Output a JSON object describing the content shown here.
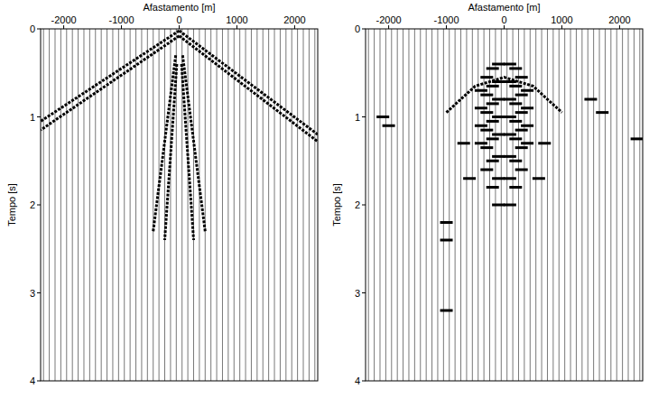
{
  "chart_data": [
    {
      "type": "seismic",
      "x_label": "Afastamento [m]",
      "y_label": "Tempo [s]",
      "xlim": [
        -2400,
        2400
      ],
      "ylim": [
        0,
        4
      ],
      "xticks": [
        -2000,
        -1000,
        0,
        1000,
        2000
      ],
      "yticks": [
        0,
        1,
        2,
        3,
        4
      ],
      "grid": false,
      "traces": [
        -2350,
        -2250,
        -2150,
        -2050,
        -1950,
        -1850,
        -1750,
        -1650,
        -1550,
        -1450,
        -1350,
        -1250,
        -1150,
        -1050,
        -950,
        -850,
        -750,
        -650,
        -550,
        -450,
        -350,
        -250,
        -150,
        -50,
        50,
        150,
        250,
        350,
        450,
        550,
        650,
        750,
        850,
        950,
        1050,
        1150,
        1250,
        1350,
        1450,
        1550,
        1650,
        1750,
        1850,
        1950,
        2050,
        2150,
        2250,
        2350
      ],
      "series": [
        {
          "type": "line",
          "line_style": "wiggle",
          "color": "#000000",
          "x": [
            0,
            -2400
          ],
          "values": [
            0.02,
            1.05
          ]
        },
        {
          "type": "line",
          "line_style": "wiggle",
          "color": "#000000",
          "x": [
            0,
            -2400
          ],
          "values": [
            0.08,
            1.15
          ]
        },
        {
          "type": "line",
          "line_style": "wiggle",
          "color": "#000000",
          "x": [
            0,
            2400
          ],
          "values": [
            0.02,
            1.2
          ]
        },
        {
          "type": "line",
          "line_style": "wiggle",
          "color": "#000000",
          "x": [
            0,
            2400
          ],
          "values": [
            0.08,
            1.28
          ]
        },
        {
          "type": "line",
          "line_style": "wiggle",
          "color": "#000000",
          "x": [
            -60,
            -450
          ],
          "values": [
            0.3,
            2.3
          ]
        },
        {
          "type": "line",
          "line_style": "wiggle",
          "color": "#000000",
          "x": [
            -40,
            -250
          ],
          "values": [
            0.4,
            2.4
          ]
        },
        {
          "type": "line",
          "line_style": "wiggle",
          "color": "#000000",
          "x": [
            60,
            450
          ],
          "values": [
            0.3,
            2.3
          ]
        },
        {
          "type": "line",
          "line_style": "wiggle",
          "color": "#000000",
          "x": [
            40,
            250
          ],
          "values": [
            0.4,
            2.4
          ]
        }
      ]
    },
    {
      "type": "seismic",
      "x_label": "Afastamento [m]",
      "y_label": "Tempo [s]",
      "xlim": [
        -2400,
        2400
      ],
      "ylim": [
        0,
        4
      ],
      "xticks": [
        -2000,
        -1000,
        0,
        1000,
        2000
      ],
      "yticks": [
        0,
        1,
        2,
        3,
        4
      ],
      "grid": false,
      "traces": [
        -2350,
        -2250,
        -2150,
        -2050,
        -1950,
        -1850,
        -1750,
        -1650,
        -1550,
        -1450,
        -1350,
        -1250,
        -1150,
        -1050,
        -950,
        -850,
        -750,
        -650,
        -550,
        -450,
        -350,
        -250,
        -150,
        -50,
        50,
        150,
        250,
        350,
        450,
        550,
        650,
        750,
        850,
        950,
        1050,
        1150,
        1250,
        1350,
        1450,
        1550,
        1650,
        1750,
        1850,
        1950,
        2050,
        2150,
        2250,
        2350
      ],
      "series": [
        {
          "type": "scatter",
          "marker": "dash",
          "color": "#000000",
          "x": [
            -400,
            -400,
            -400,
            -400,
            -300,
            -300,
            -300,
            -300,
            -300,
            -300,
            -200,
            -200,
            -200,
            -200,
            -200,
            -200,
            -200,
            -100,
            -100,
            -100,
            -100,
            -100,
            -100,
            -100,
            -100,
            100,
            100,
            100,
            100,
            100,
            100,
            100,
            100,
            200,
            200,
            200,
            200,
            200,
            200,
            200,
            300,
            300,
            300,
            300,
            300,
            300,
            400,
            400,
            400,
            400
          ],
          "values": [
            0.7,
            0.9,
            1.1,
            1.3,
            0.55,
            0.75,
            0.95,
            1.15,
            1.35,
            1.6,
            0.45,
            0.65,
            0.85,
            1.05,
            1.25,
            1.5,
            1.8,
            0.4,
            0.6,
            0.8,
            1.0,
            1.2,
            1.45,
            1.7,
            2.0,
            0.4,
            0.6,
            0.8,
            1.0,
            1.2,
            1.45,
            1.7,
            2.0,
            0.45,
            0.65,
            0.85,
            1.05,
            1.25,
            1.5,
            1.8,
            0.55,
            0.75,
            0.95,
            1.15,
            1.35,
            1.6,
            0.7,
            0.9,
            1.1,
            1.3
          ]
        },
        {
          "type": "scatter",
          "marker": "dash",
          "color": "#000000",
          "x": [
            -2100,
            -2000,
            -1000,
            -1000,
            -1000,
            1500,
            1700,
            2300,
            -700,
            700,
            -600,
            600
          ],
          "values": [
            1.0,
            1.1,
            2.2,
            2.4,
            3.2,
            0.8,
            0.95,
            1.25,
            1.3,
            1.3,
            1.7,
            1.7
          ]
        },
        {
          "type": "line",
          "line_style": "wiggle",
          "color": "#000000",
          "x": [
            -1000,
            -500,
            0,
            500,
            1000
          ],
          "values": [
            0.95,
            0.65,
            0.55,
            0.65,
            0.95
          ]
        }
      ]
    }
  ]
}
